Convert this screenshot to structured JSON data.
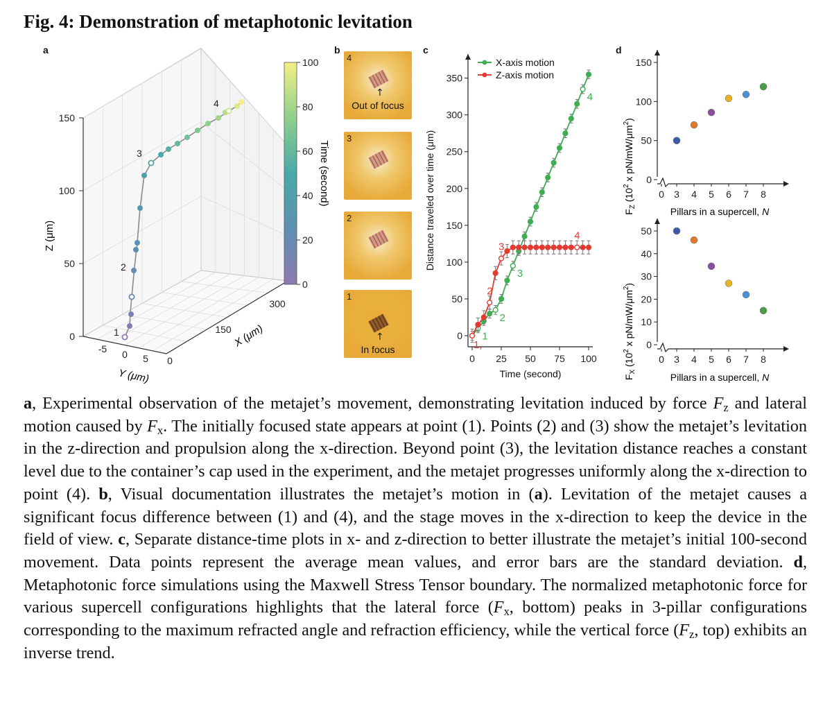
{
  "figure": {
    "title": "Fig. 4: Demonstration of metaphotonic levitation",
    "panel_a_letter": "a",
    "panel_b_letter": "b",
    "panel_c_letter": "c",
    "panel_d_letter": "d"
  },
  "panel_a": {
    "z_axis_label": "Z (μm)",
    "y_axis_label": "Y (μm)",
    "x_axis_label": "X (μm)",
    "z_ticks": [
      "0",
      "50",
      "100",
      "150"
    ],
    "y_ticks": [
      "-5",
      "0",
      "5"
    ],
    "y_tick_0": "0",
    "x_ticks": [
      "150",
      "300"
    ],
    "colorbar_label": "Time (second)",
    "colorbar_ticks": [
      "0",
      "20",
      "40",
      "60",
      "80",
      "100"
    ],
    "point_labels": [
      "1",
      "2",
      "3",
      "4"
    ]
  },
  "panel_b": {
    "tiles": [
      {
        "number": "4",
        "caption": "Out of focus"
      },
      {
        "number": "3",
        "caption": ""
      },
      {
        "number": "2",
        "caption": ""
      },
      {
        "number": "1",
        "caption": "In focus"
      }
    ]
  },
  "chart_data": [
    {
      "type": "line",
      "panel": "c",
      "xlabel": "Time (second)",
      "ylabel": "Distance traveled over time (μm)",
      "xlim": [
        0,
        100
      ],
      "ylim": [
        0,
        360
      ],
      "x_ticks": [
        "0",
        "25",
        "50",
        "75",
        "100"
      ],
      "y_ticks": [
        "0",
        "50",
        "100",
        "150",
        "200",
        "250",
        "300",
        "350"
      ],
      "legend_position": "top-left",
      "series": [
        {
          "name": "X-axis motion",
          "color": "#3fae52",
          "x": [
            0,
            5,
            10,
            15,
            20,
            25,
            30,
            35,
            40,
            45,
            50,
            55,
            60,
            65,
            70,
            75,
            80,
            85,
            90,
            95,
            100
          ],
          "y": [
            0,
            10,
            20,
            30,
            35,
            50,
            75,
            95,
            115,
            135,
            155,
            175,
            195,
            215,
            235,
            255,
            275,
            295,
            315,
            335,
            355
          ],
          "error": 6,
          "marker_labels": [
            {
              "x": 5,
              "text": "1"
            },
            {
              "x": 20,
              "text": "2"
            },
            {
              "x": 35,
              "text": "3"
            },
            {
              "x": 95,
              "text": "4"
            }
          ]
        },
        {
          "name": "Z-axis motion",
          "color": "#e23b33",
          "x": [
            0,
            5,
            10,
            15,
            20,
            25,
            30,
            35,
            40,
            45,
            50,
            55,
            60,
            65,
            70,
            75,
            80,
            85,
            90,
            95,
            100
          ],
          "y": [
            0,
            15,
            25,
            45,
            85,
            105,
            115,
            120,
            120,
            120,
            120,
            120,
            120,
            120,
            120,
            120,
            120,
            120,
            120,
            120,
            120
          ],
          "error": 9,
          "marker_labels": [
            {
              "x": 0,
              "text": "1,"
            },
            {
              "x": 15,
              "text": "2"
            },
            {
              "x": 25,
              "text": "3"
            },
            {
              "x": 90,
              "text": "4"
            }
          ]
        }
      ]
    },
    {
      "type": "scatter",
      "panel": "d-top",
      "xlabel": "Pillars in a supercell, N",
      "ylabel": "Fz (10² x pN/mW/μm²)",
      "xlim": [
        0,
        8
      ],
      "ylim": [
        0,
        150
      ],
      "x_ticks": [
        "0",
        "3",
        "4",
        "5",
        "6",
        "7",
        "8"
      ],
      "y_ticks": [
        "0",
        "50",
        "100",
        "150"
      ],
      "x": [
        3,
        4,
        5,
        6,
        7,
        8
      ],
      "y": [
        50,
        70,
        86,
        104,
        109,
        119
      ],
      "colors": [
        "#3b5aa8",
        "#e0782c",
        "#8b4fa0",
        "#e6b226",
        "#4e8fcf",
        "#4c9a45"
      ]
    },
    {
      "type": "scatter",
      "panel": "d-bottom",
      "xlabel": "Pillars in a supercell, N",
      "ylabel": "Fx (10² x pN/mW/μm²)",
      "xlim": [
        0,
        8
      ],
      "ylim": [
        0,
        50
      ],
      "x_ticks": [
        "0",
        "3",
        "4",
        "5",
        "6",
        "7",
        "8"
      ],
      "y_ticks": [
        "0",
        "10",
        "20",
        "30",
        "40",
        "50"
      ],
      "x": [
        3,
        4,
        5,
        6,
        7,
        8
      ],
      "y": [
        50,
        46,
        34.5,
        27,
        22,
        15
      ],
      "colors": [
        "#3b5aa8",
        "#e0782c",
        "#8b4fa0",
        "#e6b226",
        "#4e8fcf",
        "#4c9a45"
      ]
    }
  ],
  "d_labels": {
    "top_ylabel_main": "F",
    "top_ylabel_sub": "Z",
    "top_ylabel_rest": " (10",
    "top_ylabel_sup": "2",
    "top_ylabel_tail": " x pN/mW/μm",
    "top_ylabel_sup2": "2",
    "top_ylabel_close": ")",
    "bottom_ylabel_main": "F",
    "bottom_ylabel_sub": "X",
    "xlabel_main": "Pillars in a supercell, ",
    "xlabel_n": "N"
  },
  "caption": {
    "a_letter": "a",
    "a_text_1": ", Experimental observation of the metajet’s movement, demonstrating levitation induced by force ",
    "fz": "F",
    "fz_sub": "z",
    "a_text_2": " and lateral motion caused by ",
    "fx": "F",
    "fx_sub": "x",
    "a_text_3": ". The initially focused state appears at point (1). Points (2) and (3) show the metajet’s levitation in the z-direction and propulsion along the x-direction. Beyond point (3), the levitation distance reaches a constant level due to the container’s cap used in the experiment, and the metajet progresses uniformly along the x-direction to point (4). ",
    "b_letter": "b",
    "b_text_1": ", Visual documentation illustrates the metajet’s motion in (",
    "b_ref": "a",
    "b_text_2": "). Levitation of the metajet causes a significant focus difference between (1) and (4), and the stage moves in the x-direction to keep the device in the field of view. ",
    "c_letter": "c",
    "c_text": ", Separate distance-time plots in x- and z-direction to better illustrate the metajet’s initial 100-second movement. Data points represent the average mean values, and error bars are the standard deviation. ",
    "d_letter": "d",
    "d_text_1": ", Metaphotonic force simulations using the Maxwell Stress Tensor boundary. The normalized metaphotonic force for various supercell configurations highlights that the lateral force (",
    "d_fx": "F",
    "d_fx_sub": "x",
    "d_text_2": ", bottom) peaks in 3-pillar configurations corresponding to the maximum refracted angle and refraction efficiency, while the vertical force (",
    "d_fz": "F",
    "d_fz_sub": "z",
    "d_text_3": ", top) exhibits an inverse trend."
  }
}
